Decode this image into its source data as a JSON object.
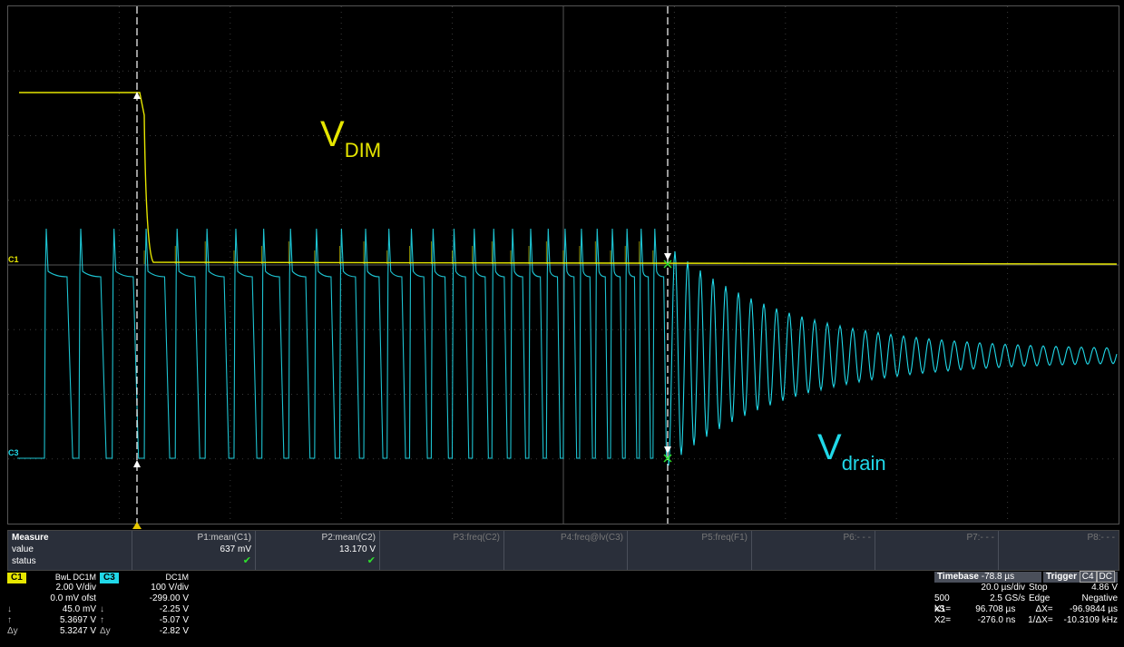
{
  "annotations": {
    "vdim_main": "V",
    "vdim_sub": "DIM",
    "vdrain_main": "V",
    "vdrain_sub": "drain"
  },
  "channel_tags": {
    "c1": "C1",
    "c3": "C3"
  },
  "measure": {
    "row_labels": [
      "Measure",
      "value",
      "status"
    ],
    "params": [
      {
        "name": "P1:mean(C1)",
        "value": "637 mV",
        "status": "✔",
        "active": true
      },
      {
        "name": "P2:mean(C2)",
        "value": "13.170 V",
        "status": "✔",
        "active": true
      },
      {
        "name": "P3:freq(C2)",
        "value": "",
        "status": "",
        "active": false
      },
      {
        "name": "P4:freq@lv(C3)",
        "value": "",
        "status": "",
        "active": false
      },
      {
        "name": "P5:freq(F1)",
        "value": "",
        "status": "",
        "active": false
      },
      {
        "name": "P6:- - -",
        "value": "",
        "status": "",
        "active": false
      },
      {
        "name": "P7:- - -",
        "value": "",
        "status": "",
        "active": false
      },
      {
        "name": "P8:- - -",
        "value": "",
        "status": "",
        "active": false
      }
    ]
  },
  "channels": {
    "c1": {
      "label": "C1",
      "mode": "BwL DC1M",
      "rows": [
        {
          "sym": "",
          "value": "2.00 V/div"
        },
        {
          "sym": "",
          "value": "0.0 mV ofst"
        },
        {
          "sym": "↓",
          "value": "45.0 mV"
        },
        {
          "sym": "↑",
          "value": "5.3697 V"
        },
        {
          "sym": "Δy",
          "value": "5.3247 V"
        }
      ],
      "color": "#e6e600"
    },
    "c3": {
      "label": "C3",
      "mode": "DC1M",
      "rows": [
        {
          "sym": "",
          "value": "100 V/div"
        },
        {
          "sym": "",
          "value": "-299.00 V"
        },
        {
          "sym": "↓",
          "value": "-2.25 V"
        },
        {
          "sym": "↑",
          "value": "-5.07 V"
        },
        {
          "sym": "Δy",
          "value": "-2.82 V"
        }
      ],
      "color": "#20d8e8"
    }
  },
  "timebase": {
    "label": "Timebase",
    "offset": "-78.8 µs",
    "trigger_label": "Trigger",
    "trigger_ch": "C4",
    "trigger_coupling": "DC",
    "row1": [
      "",
      "20.0 µs/div",
      "Stop",
      "4.86 V"
    ],
    "row2": [
      "500 kS",
      "2.5 GS/s",
      "Edge",
      "Negative"
    ],
    "row3": [
      "X1=",
      "96.708 µs",
      "ΔX=",
      "-96.9844 µs"
    ],
    "row4": [
      "X2=",
      "-276.0 ns",
      "1/ΔX=",
      "-10.3109 kHz"
    ]
  },
  "colors": {
    "c1": "#e6e600",
    "c3": "#20d8e8",
    "grid": "#3a3a3a"
  }
}
